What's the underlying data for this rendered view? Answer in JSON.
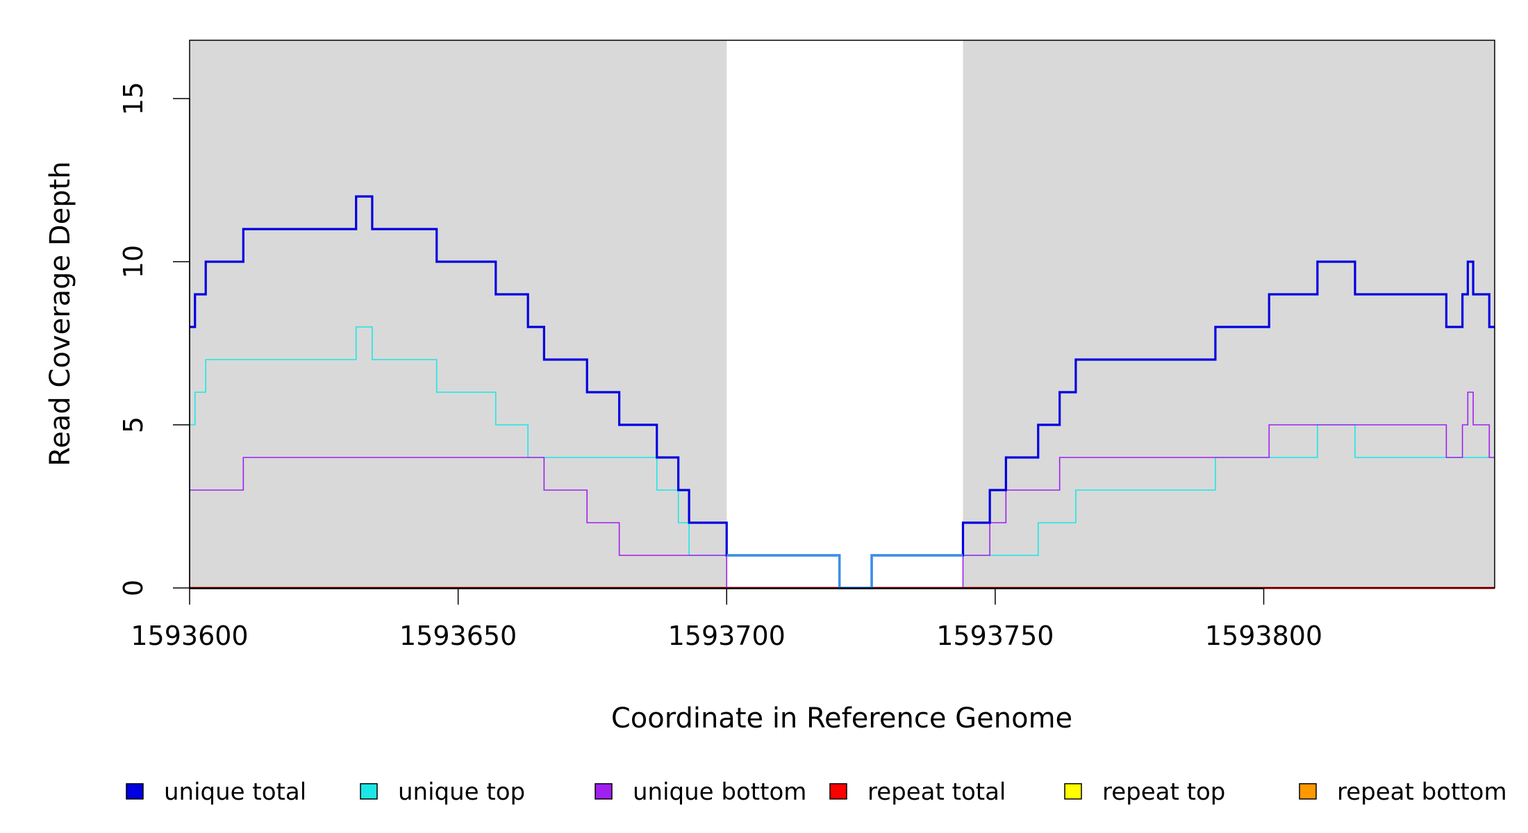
{
  "chart_data": {
    "type": "line",
    "step": true,
    "xlabel": "Coordinate in Reference Genome",
    "ylabel": "Read Coverage Depth",
    "xlim": [
      1593600,
      1593843
    ],
    "ylim": [
      0,
      17
    ],
    "x_ticks": [
      1593600,
      1593650,
      1593700,
      1593750,
      1593800
    ],
    "x_tick_labels": [
      "1593600",
      "1593650",
      "1593700",
      "1593750",
      "1593800"
    ],
    "y_ticks": [
      0,
      5,
      10,
      15
    ],
    "y_tick_labels": [
      "0",
      "5",
      "10",
      "15"
    ],
    "shaded_regions": [
      {
        "x0": 1593600,
        "x1": 1593700,
        "color": "#d9d9d9"
      },
      {
        "x0": 1593744,
        "x1": 1593843,
        "color": "#d9d9d9"
      }
    ],
    "gap_region": {
      "x0": 1593700,
      "x1": 1593744
    },
    "series": [
      {
        "name": "unique total",
        "color": "#0000e0",
        "x": [
          1593600,
          1593601,
          1593603,
          1593610,
          1593631,
          1593634,
          1593646,
          1593657,
          1593663,
          1593666,
          1593674,
          1593680,
          1593687,
          1593691,
          1593693,
          1593700,
          1593721,
          1593727,
          1593744,
          1593749,
          1593752,
          1593758,
          1593762,
          1593765,
          1593791,
          1593801,
          1593810,
          1593817,
          1593834,
          1593837,
          1593838,
          1593839,
          1593842,
          1593843
        ],
        "y": [
          8,
          9,
          10,
          11,
          12,
          11,
          10,
          9,
          8,
          7,
          6,
          5,
          4,
          3,
          2,
          1,
          0,
          1,
          2,
          3,
          4,
          5,
          6,
          7,
          8,
          9,
          10,
          9,
          8,
          9,
          10,
          9,
          8,
          8
        ]
      },
      {
        "name": "unique top",
        "color": "#1ee6e6",
        "x": [
          1593600,
          1593601,
          1593603,
          1593631,
          1593634,
          1593646,
          1593657,
          1593663,
          1593687,
          1593691,
          1593693,
          1593700,
          1593721,
          1593727,
          1593744,
          1593758,
          1593765,
          1593791,
          1593801,
          1593810,
          1593817,
          1593843
        ],
        "y": [
          5,
          6,
          7,
          8,
          7,
          6,
          5,
          4,
          3,
          2,
          1,
          1,
          0,
          1,
          1,
          2,
          3,
          4,
          4,
          5,
          4,
          4
        ]
      },
      {
        "name": "unique bottom",
        "color": "#a020f0",
        "x": [
          1593600,
          1593610,
          1593666,
          1593674,
          1593680,
          1593700,
          1593744,
          1593749,
          1593752,
          1593762,
          1593801,
          1593834,
          1593837,
          1593838,
          1593839,
          1593842,
          1593843
        ],
        "y": [
          3,
          4,
          3,
          2,
          1,
          0,
          1,
          2,
          3,
          4,
          5,
          4,
          5,
          6,
          5,
          4,
          4
        ]
      },
      {
        "name": "repeat total",
        "color": "#ff0000",
        "x": [
          1593600,
          1593843
        ],
        "y": [
          0,
          0
        ]
      },
      {
        "name": "repeat top",
        "color": "#ffff00",
        "x": [
          1593600,
          1593843
        ],
        "y": [
          0,
          0
        ]
      },
      {
        "name": "repeat bottom",
        "color": "#ff9900",
        "x": [
          1593600,
          1593843
        ],
        "y": [
          0,
          0
        ]
      }
    ],
    "legend": {
      "placement": "bottom",
      "items": [
        {
          "label": "unique total",
          "color": "#0000e0"
        },
        {
          "label": "unique top",
          "color": "#1ee6e6"
        },
        {
          "label": "unique bottom",
          "color": "#a020f0"
        },
        {
          "label": "repeat total",
          "color": "#ff0000"
        },
        {
          "label": "repeat top",
          "color": "#ffff00"
        },
        {
          "label": "repeat bottom",
          "color": "#ff9900"
        }
      ]
    },
    "gap_line_color": "#3d8fe6",
    "grid": false
  }
}
